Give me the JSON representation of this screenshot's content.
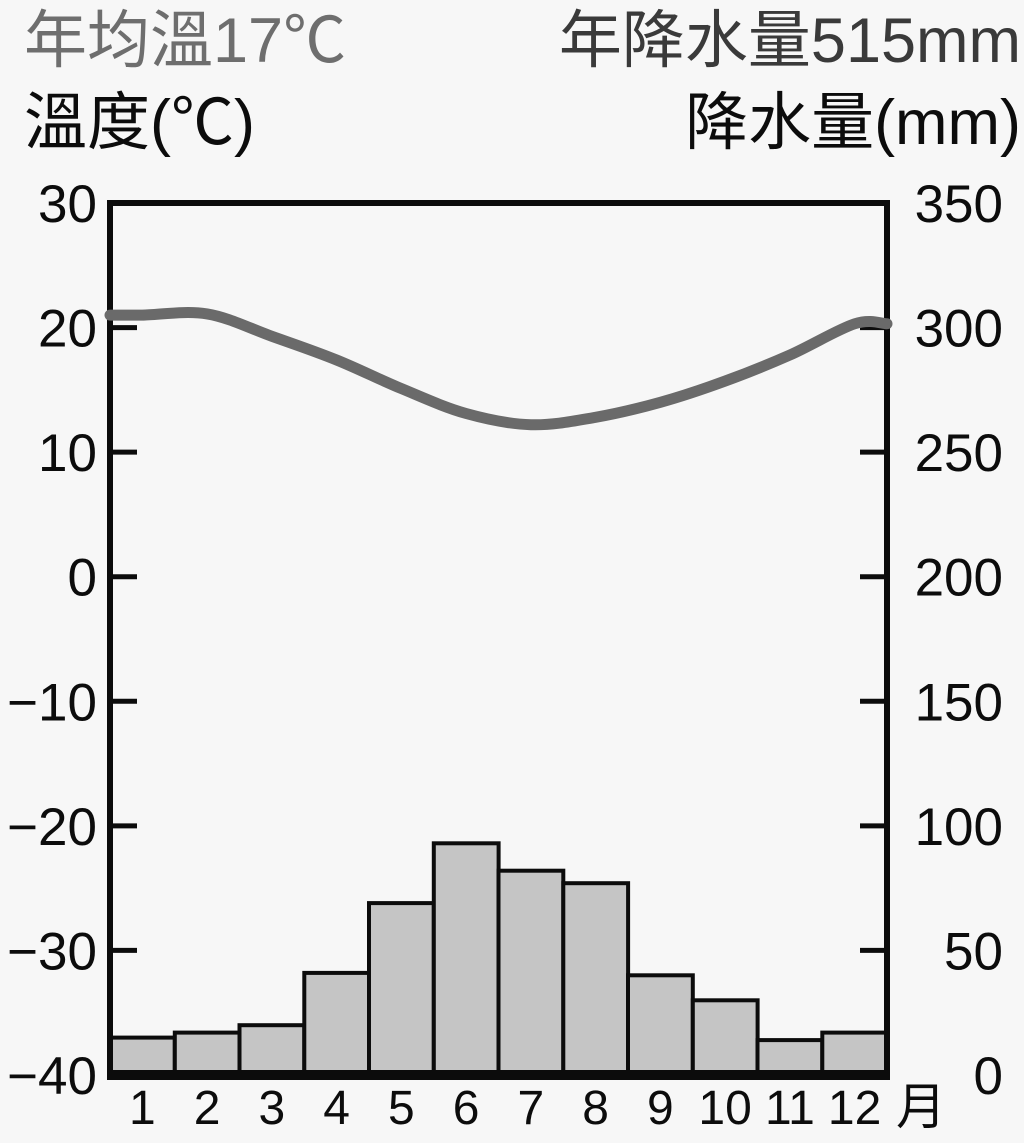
{
  "header": {
    "annual_temperature": "年均溫17℃",
    "annual_precipitation": "年降水量515mm",
    "left_axis_title": "溫度(℃)",
    "right_axis_title": "降水量(mm)"
  },
  "colors": {
    "background": "#f7f7f7",
    "axis": "#0c0c0c",
    "bar_fill": "#c5c5c5",
    "bar_stroke": "#0c0c0c",
    "temp_line": "#6a6a6a",
    "annual_temp_text": "#6e6e6e",
    "annual_precip_text": "#3a3a3a"
  },
  "chart_data": {
    "type": "bar",
    "subtype": "climograph-dual-axis-bar-and-line",
    "categories": [
      "1",
      "2",
      "3",
      "4",
      "5",
      "6",
      "7",
      "8",
      "9",
      "10",
      "11",
      "12"
    ],
    "x_axis_unit": "月",
    "series": [
      {
        "name": "temperature",
        "type": "line",
        "axis": "left",
        "unit": "℃",
        "values": [
          21.0,
          21.1,
          19.3,
          17.4,
          15.1,
          13.1,
          12.2,
          12.8,
          14.0,
          15.7,
          17.8,
          20.3
        ]
      },
      {
        "name": "precipitation",
        "type": "bar",
        "axis": "right",
        "unit": "mm",
        "values": [
          15,
          17,
          20,
          41,
          69,
          93,
          82,
          77,
          40,
          30,
          14,
          17
        ]
      }
    ],
    "left_axis": {
      "title": "溫度(℃)",
      "min": -40,
      "max": 30,
      "ticks": [
        30,
        20,
        10,
        0,
        -10,
        -20,
        -30,
        -40
      ]
    },
    "right_axis": {
      "title": "降水量(mm)",
      "min": 0,
      "max": 350,
      "ticks": [
        350,
        300,
        250,
        200,
        150,
        100,
        50,
        0
      ]
    },
    "annual_mean_temperature_c": 17,
    "annual_precipitation_mm": 515,
    "grid": false,
    "legend": false
  }
}
